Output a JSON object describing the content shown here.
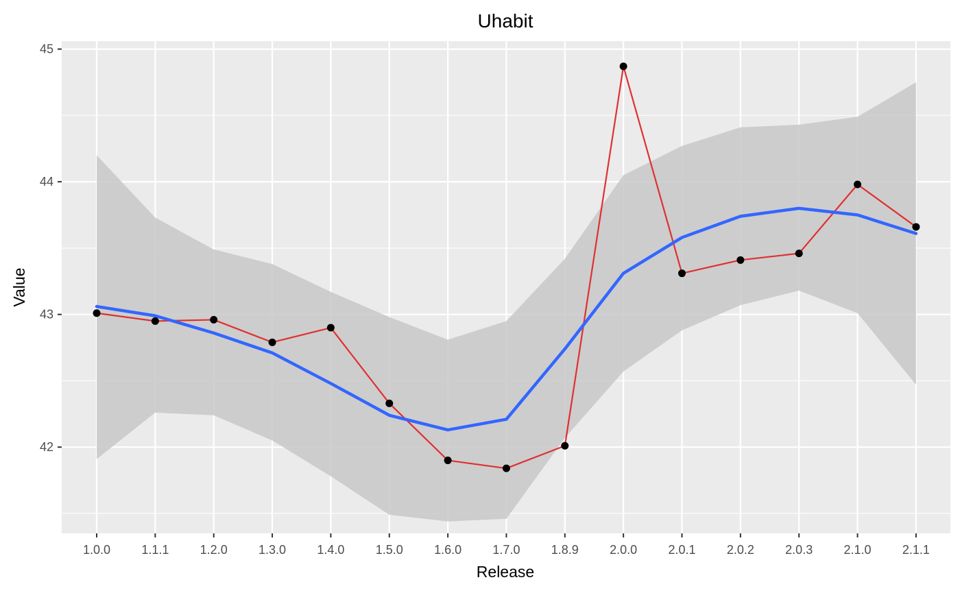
{
  "chart_data": {
    "type": "line",
    "title": "Uhabit",
    "xlabel": "Release",
    "ylabel": "Value",
    "categories": [
      "1.0.0",
      "1.1.1",
      "1.2.0",
      "1.3.0",
      "1.4.0",
      "1.5.0",
      "1.6.0",
      "1.7.0",
      "1.8.9",
      "2.0.0",
      "2.0.1",
      "2.0.2",
      "2.0.3",
      "2.1.0",
      "2.1.1"
    ],
    "ylim": [
      41.35,
      45.06
    ],
    "y_ticks": [
      42,
      43,
      44,
      45
    ],
    "grid": true,
    "series": [
      {
        "kind": "line+points",
        "values": [
          43.01,
          42.95,
          42.96,
          42.79,
          42.9,
          42.33,
          41.9,
          41.84,
          42.01,
          44.87,
          43.31,
          43.41,
          43.46,
          43.98,
          43.66
        ]
      },
      {
        "kind": "smooth",
        "values": [
          43.06,
          42.99,
          42.86,
          42.71,
          42.48,
          42.24,
          42.13,
          42.21,
          42.74,
          43.31,
          43.58,
          43.74,
          43.8,
          43.75,
          43.61
        ]
      }
    ],
    "confidence_band": {
      "upper": [
        44.2,
        43.73,
        43.49,
        43.38,
        43.17,
        42.98,
        42.81,
        42.95,
        43.42,
        44.05,
        44.27,
        44.41,
        44.43,
        44.49,
        44.75
      ],
      "lower": [
        41.91,
        42.26,
        42.24,
        42.05,
        41.78,
        41.49,
        41.44,
        41.46,
        42.07,
        42.57,
        42.88,
        43.07,
        43.18,
        43.01,
        42.47
      ]
    },
    "colors": {
      "panel_background": "#ebebeb",
      "grid": "#ffffff",
      "line": "#e03030",
      "points": "#000000",
      "smooth": "#3366ff",
      "band": "#c8c8c8"
    }
  }
}
